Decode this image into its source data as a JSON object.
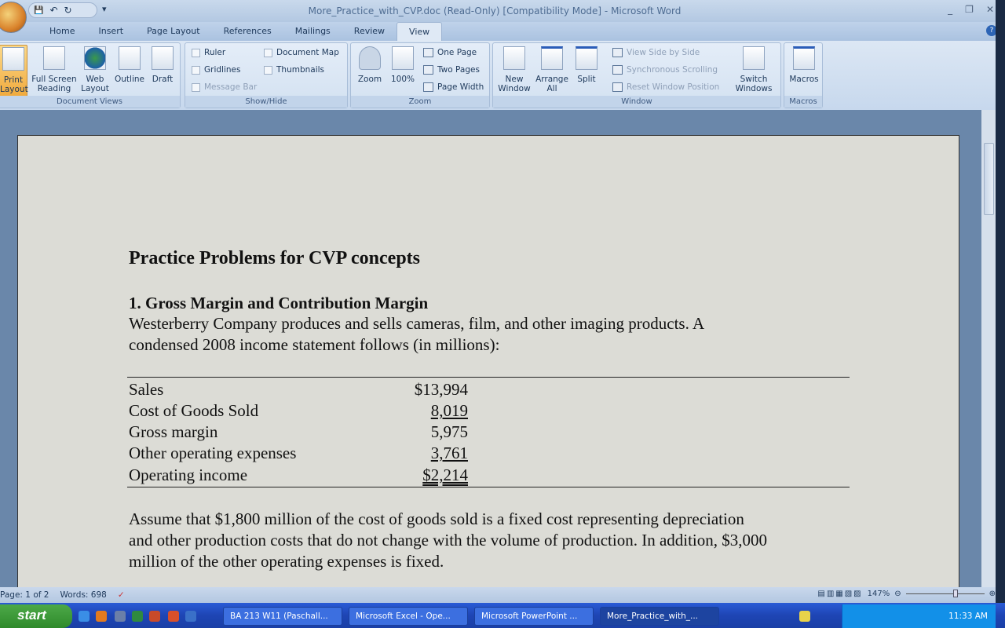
{
  "window": {
    "title": "More_Practice_with_CVP.doc (Read-Only) [Compatibility Mode] - Microsoft Word",
    "min": "_",
    "max": "❐",
    "close": "✕",
    "help": "?"
  },
  "qat": {
    "save": "💾",
    "undo": "↶",
    "redo": "↻",
    "customize": "▾"
  },
  "tabs": [
    "Home",
    "Insert",
    "Page Layout",
    "References",
    "Mailings",
    "Review",
    "View"
  ],
  "active_tab": "View",
  "ribbon": {
    "document_views": {
      "label": "Document Views",
      "buttons": [
        "Print Layout",
        "Full Screen Reading",
        "Web Layout",
        "Outline",
        "Draft"
      ],
      "active": "Print Layout"
    },
    "show_hide": {
      "label": "Show/Hide",
      "checks": [
        {
          "label": "Ruler",
          "checked": false
        },
        {
          "label": "Document Map",
          "checked": false
        },
        {
          "label": "Gridlines",
          "checked": false
        },
        {
          "label": "Thumbnails",
          "checked": false
        },
        {
          "label": "Message Bar",
          "checked": false,
          "disabled": true
        }
      ]
    },
    "zoom": {
      "label": "Zoom",
      "zoom": "Zoom",
      "hundred": "100%",
      "one_page": "One Page",
      "two_pages": "Two Pages",
      "page_width": "Page Width"
    },
    "window": {
      "label": "Window",
      "new_window": "New Window",
      "arrange_all": "Arrange All",
      "split": "Split",
      "side_by_side": "View Side by Side",
      "sync_scroll": "Synchronous Scrolling",
      "reset_pos": "Reset Window Position",
      "switch": "Switch Windows"
    },
    "macros": {
      "label": "Macros",
      "button": "Macros"
    }
  },
  "document": {
    "title": "Practice Problems for CVP concepts",
    "heading1": "1. Gross Margin and Contribution Margin",
    "para1_line1": "Westerberry Company produces and sells cameras, film, and other imaging products. A",
    "para1_line2": "condensed 2008 income statement follows (in millions):",
    "table": [
      {
        "label": "Sales",
        "amount": "$13,994"
      },
      {
        "label": "Cost of Goods Sold",
        "amount": "8,019"
      },
      {
        "label": "Gross margin",
        "amount": "5,975"
      },
      {
        "label": "Other operating expenses",
        "amount": "3,761"
      },
      {
        "label": "Operating income",
        "amount": "$2,214"
      }
    ],
    "para2_line1": "Assume that $1,800 million of the cost of goods sold is a fixed cost representing depreciation",
    "para2_line2": "and other production costs that do not change with the volume of production. In addition, $3,000",
    "para2_line3": "million of the other operating expenses is fixed."
  },
  "status": {
    "page": "Page: 1 of 2",
    "words": "Words: 698",
    "zoom": "147%"
  },
  "taskbar": {
    "start": "start",
    "tasks": [
      "BA 213 W11 (Paschall...",
      "Microsoft Excel - Ope...",
      "Microsoft PowerPoint ...",
      "More_Practice_with_..."
    ],
    "active_task": "More_Practice_with_...",
    "clock": "11:33 AM"
  }
}
